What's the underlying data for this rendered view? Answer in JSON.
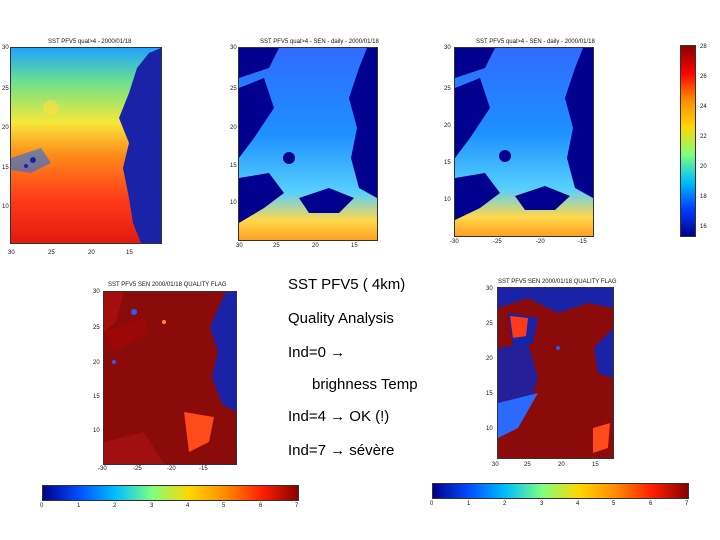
{
  "maps": {
    "sst": {
      "title": "SST PFV5 qual>4 - 2000/01/18",
      "yticks": [
        "30",
        "25",
        "20",
        "15",
        "10"
      ],
      "xticks": [
        "30",
        "25",
        "20",
        "15"
      ]
    },
    "qual4": {
      "title": "SST PFV5 qual>4 - SEN - daily - 2000/01/18",
      "yticks": [
        "30",
        "25",
        "20",
        "15",
        "10"
      ],
      "xticks": [
        "30",
        "25",
        "20",
        "15"
      ]
    },
    "qual4b": {
      "title": "SST PFV5 qual>4 - SEN - daily - 2000/01/18",
      "yticks": [
        "30",
        "25",
        "20",
        "15",
        "10"
      ],
      "xticks": [
        "-30",
        "-25",
        "-20",
        "-15"
      ]
    },
    "flag1": {
      "title": "SST PFV5 SEN 2000/01/18 QUALITY FLAG",
      "yticks": [
        "30",
        "25",
        "20",
        "15",
        "10"
      ],
      "xticks": [
        "-30",
        "-25",
        "-20",
        "-15"
      ]
    },
    "flag2": {
      "title": "SST PFV5 SEN 2000/01/18 QUALITY FLAG",
      "yticks": [
        "30",
        "25",
        "20",
        "15",
        "10"
      ],
      "xticks": [
        "30",
        "25",
        "20",
        "15"
      ]
    }
  },
  "sst_colorbar": {
    "ticks": [
      "28",
      "26",
      "24",
      "22",
      "20",
      "18",
      "16"
    ]
  },
  "flag_colorbar_left": {
    "ticks": [
      "0",
      "1",
      "2",
      "3",
      "4",
      "5",
      "6",
      "7"
    ]
  },
  "flag_colorbar_right": {
    "ticks": [
      "0",
      "1",
      "2",
      "3",
      "4",
      "5",
      "6",
      "7"
    ]
  },
  "text": {
    "line1": "SST PFV5 ( 4km)",
    "line2": "Quality Analysis",
    "line3": "Ind=0 →",
    "line4": "brighness Temp",
    "line5": "Ind=4 → OK (!)",
    "line6": "Ind=7 → sévère"
  },
  "colors": {
    "ocean": "#1a22a8",
    "land": "#8b0a0a",
    "dark_blue": "#00008f"
  }
}
